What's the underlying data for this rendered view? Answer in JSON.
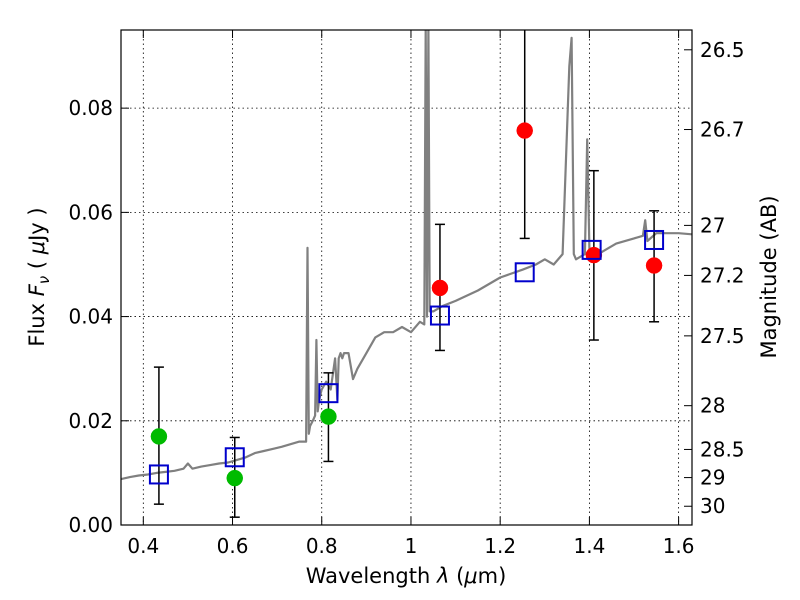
{
  "chart_data": {
    "type": "scatter",
    "xlabel": "Wavelength  λ (μm)",
    "ylabel": "Flux  F_ν  ( μJy )",
    "ylabel_right": "Magnitude (AB)",
    "xlim": [
      0.35,
      1.63
    ],
    "ylim": [
      0.0,
      0.095
    ],
    "grid": true,
    "x_ticks": [
      0.4,
      0.6,
      0.8,
      1.0,
      1.2,
      1.4,
      1.6
    ],
    "x_tick_labels": [
      "0.4",
      "0.6",
      "0.8",
      "1",
      "1.2",
      "1.4",
      "1.6"
    ],
    "y_ticks": [
      0.0,
      0.02,
      0.04,
      0.06,
      0.08
    ],
    "y_tick_labels": [
      "0.00",
      "0.02",
      "0.04",
      "0.06",
      "0.08"
    ],
    "right_ticks": [
      {
        "label": "26.5",
        "flux": 0.0912
      },
      {
        "label": "26.7",
        "flux": 0.0759
      },
      {
        "label": "27",
        "flux": 0.0575
      },
      {
        "label": "27.2",
        "flux": 0.0479
      },
      {
        "label": "27.5",
        "flux": 0.0363
      },
      {
        "label": "28",
        "flux": 0.0229
      },
      {
        "label": "28.5",
        "flux": 0.0145
      },
      {
        "label": "29",
        "flux": 0.0091
      },
      {
        "label": "30",
        "flux": 0.0036
      }
    ],
    "colors": {
      "spectrum": "#808080",
      "green": "#00bb00",
      "red": "#ff0000",
      "model": "#0000cc"
    },
    "spectrum": {
      "x": [
        0.35,
        0.37,
        0.39,
        0.41,
        0.43,
        0.45,
        0.47,
        0.49,
        0.5,
        0.51,
        0.53,
        0.55,
        0.57,
        0.59,
        0.61,
        0.63,
        0.65,
        0.67,
        0.69,
        0.71,
        0.73,
        0.75,
        0.765,
        0.768,
        0.771,
        0.774,
        0.78,
        0.785,
        0.788,
        0.791,
        0.794,
        0.8,
        0.81,
        0.82,
        0.83,
        0.835,
        0.838,
        0.842,
        0.846,
        0.85,
        0.86,
        0.87,
        0.88,
        0.9,
        0.92,
        0.94,
        0.96,
        0.98,
        1.0,
        1.02,
        1.03,
        1.033,
        1.036,
        1.039,
        1.042,
        1.05,
        1.07,
        1.1,
        1.15,
        1.2,
        1.25,
        1.28,
        1.3,
        1.32,
        1.34,
        1.355,
        1.36,
        1.365,
        1.37,
        1.39,
        1.395,
        1.4,
        1.42,
        1.44,
        1.46,
        1.5,
        1.52,
        1.525,
        1.53,
        1.55,
        1.6,
        1.63
      ],
      "y": [
        0.0088,
        0.0092,
        0.0095,
        0.0097,
        0.01,
        0.0102,
        0.0104,
        0.0108,
        0.0118,
        0.0108,
        0.0112,
        0.0115,
        0.0118,
        0.012,
        0.0125,
        0.013,
        0.0138,
        0.0142,
        0.0146,
        0.015,
        0.0155,
        0.016,
        0.016,
        0.0532,
        0.0175,
        0.019,
        0.02,
        0.021,
        0.0355,
        0.0218,
        0.024,
        0.026,
        0.0275,
        0.026,
        0.032,
        0.024,
        0.032,
        0.033,
        0.032,
        0.033,
        0.033,
        0.028,
        0.03,
        0.033,
        0.036,
        0.037,
        0.037,
        0.038,
        0.037,
        0.039,
        0.0385,
        0.096,
        0.04,
        0.096,
        0.041,
        0.041,
        0.042,
        0.043,
        0.045,
        0.0475,
        0.049,
        0.05,
        0.051,
        0.05,
        0.052,
        0.088,
        0.0935,
        0.052,
        0.051,
        0.052,
        0.074,
        0.053,
        0.052,
        0.053,
        0.054,
        0.055,
        0.0555,
        0.0585,
        0.0545,
        0.056,
        0.056,
        0.0558
      ]
    },
    "series": [
      {
        "marker": "circle",
        "color": "green",
        "points": [
          {
            "x": 0.435,
            "y": 0.017
          },
          {
            "x": 0.605,
            "y": 0.009
          },
          {
            "x": 0.815,
            "y": 0.0208
          }
        ]
      },
      {
        "marker": "circle",
        "color": "red",
        "points": [
          {
            "x": 1.065,
            "y": 0.0455
          },
          {
            "x": 1.255,
            "y": 0.0757
          },
          {
            "x": 1.41,
            "y": 0.0518
          },
          {
            "x": 1.545,
            "y": 0.0498
          }
        ]
      },
      {
        "marker": "square",
        "color": "model",
        "points": [
          {
            "x": 0.435,
            "y": 0.0097
          },
          {
            "x": 0.605,
            "y": 0.013
          },
          {
            "x": 0.815,
            "y": 0.0253
          },
          {
            "x": 1.065,
            "y": 0.0402
          },
          {
            "x": 1.255,
            "y": 0.0485
          },
          {
            "x": 1.405,
            "y": 0.0528
          },
          {
            "x": 1.545,
            "y": 0.0547
          }
        ]
      }
    ],
    "errorbars": [
      {
        "x": 0.435,
        "low": 0.004,
        "high": 0.0303
      },
      {
        "x": 0.605,
        "low": 0.0015,
        "high": 0.0168
      },
      {
        "x": 0.815,
        "low": 0.0122,
        "high": 0.0292
      },
      {
        "x": 1.065,
        "low": 0.0335,
        "high": 0.0577
      },
      {
        "x": 1.255,
        "low": 0.055,
        "high": 0.096
      },
      {
        "x": 1.41,
        "low": 0.0355,
        "high": 0.068
      },
      {
        "x": 1.545,
        "low": 0.039,
        "high": 0.0603
      }
    ]
  }
}
